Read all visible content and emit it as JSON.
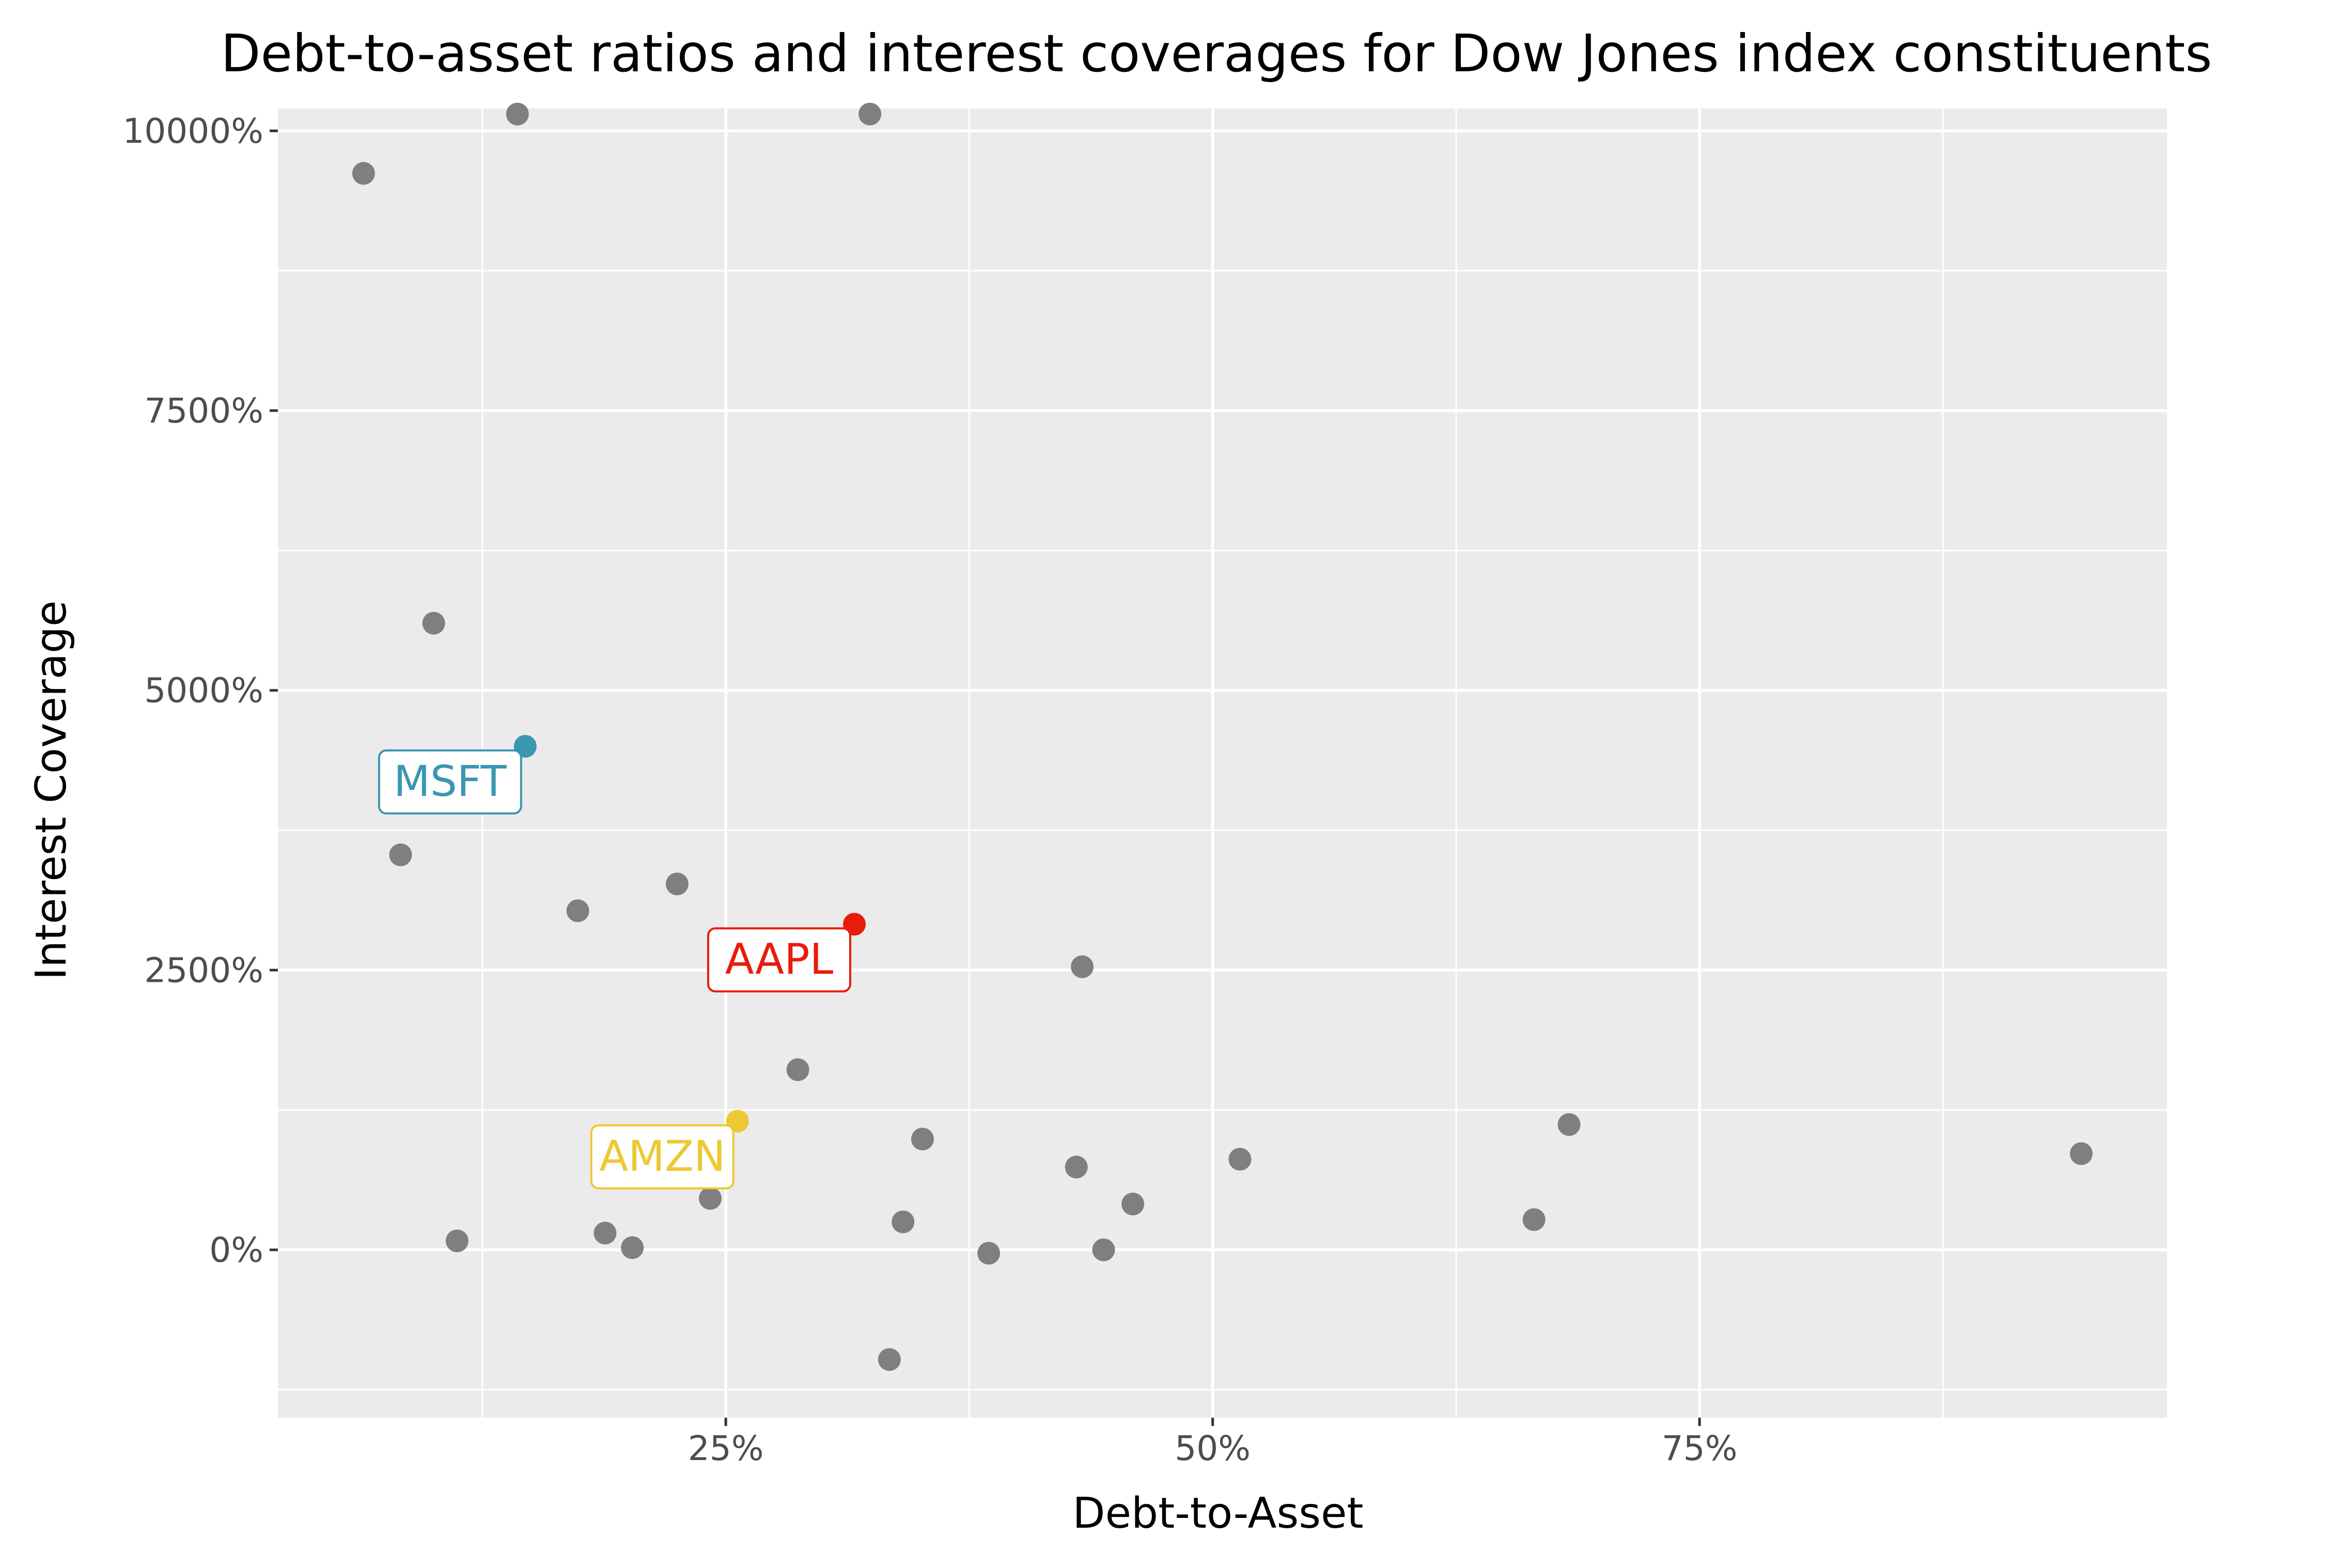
{
  "chart_data": {
    "type": "scatter",
    "title": "Debt-to-asset ratios and interest coverages for Dow Jones index constituents",
    "xlabel": "Debt-to-Asset",
    "ylabel": "Interest Coverage",
    "xlim": [
      0.02,
      0.99
    ],
    "ylim": [
      -15,
      102
    ],
    "x_ticks": [
      {
        "value": 0.25,
        "label": "25%"
      },
      {
        "value": 0.5,
        "label": "50%"
      },
      {
        "value": 0.75,
        "label": "75%"
      }
    ],
    "y_ticks": [
      {
        "value": 0,
        "label": "0%"
      },
      {
        "value": 25,
        "label": "2500%"
      },
      {
        "value": 50,
        "label": "5000%"
      },
      {
        "value": 75,
        "label": "7500%"
      },
      {
        "value": 100,
        "label": "10000%"
      }
    ],
    "grid": true,
    "point_color": "#7f7f7f",
    "points": [
      {
        "x": 0.064,
        "y": 96.2
      },
      {
        "x": 0.143,
        "y": 101.5
      },
      {
        "x": 0.324,
        "y": 101.5
      },
      {
        "x": 0.1,
        "y": 56.0
      },
      {
        "x": 0.083,
        "y": 35.3
      },
      {
        "x": 0.174,
        "y": 30.3
      },
      {
        "x": 0.225,
        "y": 32.7
      },
      {
        "x": 0.433,
        "y": 25.3
      },
      {
        "x": 0.287,
        "y": 16.1
      },
      {
        "x": 0.351,
        "y": 9.9
      },
      {
        "x": 0.43,
        "y": 7.4
      },
      {
        "x": 0.514,
        "y": 8.1
      },
      {
        "x": 0.683,
        "y": 11.2
      },
      {
        "x": 0.946,
        "y": 8.6
      },
      {
        "x": 0.242,
        "y": 4.6
      },
      {
        "x": 0.112,
        "y": 0.8
      },
      {
        "x": 0.188,
        "y": 1.5
      },
      {
        "x": 0.202,
        "y": 0.2
      },
      {
        "x": 0.341,
        "y": 2.5
      },
      {
        "x": 0.385,
        "y": -0.3
      },
      {
        "x": 0.444,
        "y": 0.0
      },
      {
        "x": 0.459,
        "y": 4.1
      },
      {
        "x": 0.665,
        "y": 2.7
      },
      {
        "x": 0.334,
        "y": -9.8
      }
    ],
    "highlights": [
      {
        "label": "MSFT",
        "x": 0.147,
        "y": 45.0,
        "color": "#3a97b2"
      },
      {
        "label": "AAPL",
        "x": 0.316,
        "y": 29.1,
        "color": "#e81c0c"
      },
      {
        "label": "AMZN",
        "x": 0.256,
        "y": 11.5,
        "color": "#ecc932"
      }
    ]
  }
}
